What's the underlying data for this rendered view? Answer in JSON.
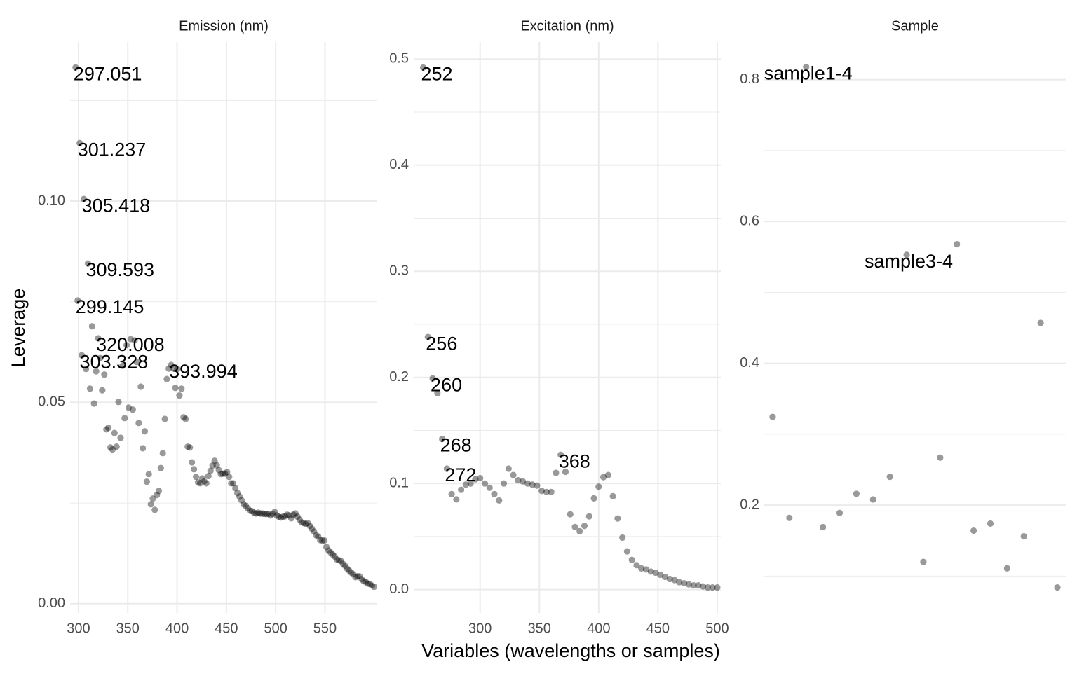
{
  "axis_titles": {
    "x": "Variables (wavelengths or samples)",
    "y": "Leverage"
  },
  "chart_data": [
    {
      "type": "scatter",
      "title": "Emission (nm)",
      "color": "#000000",
      "opacity": 0.4,
      "grid": true,
      "xlim": [
        291.5,
        603
      ],
      "xticks": [
        300,
        350,
        400,
        450,
        500,
        550
      ],
      "ylim": [
        -0.0023,
        0.1395
      ],
      "yticks": [
        {
          "value": 0,
          "label": "0.00"
        },
        {
          "value": 0.05,
          "label": "0.05"
        },
        {
          "value": 0.1,
          "label": "0.10"
        }
      ],
      "y_minor_ticks": [
        0.025,
        0.075,
        0.125
      ],
      "x": [
        307.5,
        311.7,
        313.8,
        315.8,
        317.9,
        322.1,
        324.1,
        326.2,
        328.3,
        330.3,
        332.4,
        334.5,
        336.5,
        338.6,
        340.6,
        342.7,
        344.7,
        346.8,
        348.8,
        350.9,
        352.9,
        355.0,
        357.0,
        359.1,
        361.1,
        363.2,
        365.2,
        367.2,
        369.3,
        371.3,
        373.4,
        375.4,
        377.4,
        379.5,
        381.5,
        383.5,
        385.5,
        387.6,
        389.6,
        391.6,
        396.1,
        398.2,
        400.3,
        402.4,
        404.5,
        406.6,
        408.7,
        410.8,
        412.9,
        415.0,
        417.1,
        419.2,
        421.3,
        423.4,
        425.5,
        427.6,
        429.7,
        431.8,
        433.9,
        436.0,
        438.1,
        440.2,
        442.3,
        444.4,
        446.5,
        448.6,
        450.7,
        452.8,
        454.9,
        457.0,
        459.1,
        461.2,
        463.3,
        465.4,
        467.5,
        469.6,
        471.7,
        473.8,
        475.9,
        478.0,
        480.1,
        482.2,
        484.3,
        486.4,
        488.5,
        490.6,
        492.7,
        494.8,
        496.9,
        499.0,
        501.1,
        503.2,
        505.3,
        507.4,
        509.5,
        511.6,
        513.7,
        515.8,
        517.9,
        520.0,
        522.1,
        524.2,
        526.3,
        528.4,
        530.5,
        532.6,
        534.7,
        536.8,
        538.9,
        541.0,
        543.1,
        545.2,
        547.3,
        549.4,
        551.5,
        553.6,
        555.7,
        557.8,
        559.9,
        562.0,
        564.1,
        566.2,
        568.3,
        570.4,
        572.5,
        574.6,
        576.7,
        578.8,
        580.9,
        583.0,
        585.1,
        587.2,
        589.3,
        591.4,
        593.5,
        595.6,
        597.7,
        599.8
      ],
      "values": [
        0.0583,
        0.0534,
        0.0689,
        0.0497,
        0.0577,
        0.061,
        0.053,
        0.0569,
        0.0433,
        0.0437,
        0.0388,
        0.0383,
        0.0424,
        0.039,
        0.0501,
        0.0412,
        0.0591,
        0.0461,
        0.0642,
        0.0487,
        0.0657,
        0.0482,
        0.0654,
        0.06,
        0.0449,
        0.0539,
        0.0386,
        0.0428,
        0.0303,
        0.0322,
        0.0247,
        0.0261,
        0.0233,
        0.027,
        0.028,
        0.0337,
        0.0374,
        0.0459,
        0.0558,
        0.0584,
        0.0586,
        0.0536,
        0.0583,
        0.0517,
        0.0534,
        0.0463,
        0.0459,
        0.039,
        0.0388,
        0.0351,
        0.0334,
        0.0315,
        0.0301,
        0.0299,
        0.0311,
        0.0304,
        0.0299,
        0.0317,
        0.033,
        0.0343,
        0.0355,
        0.0344,
        0.0332,
        0.0322,
        0.0323,
        0.0323,
        0.0327,
        0.0315,
        0.0299,
        0.0299,
        0.0287,
        0.0275,
        0.0266,
        0.0257,
        0.0247,
        0.0243,
        0.0237,
        0.0231,
        0.023,
        0.0226,
        0.0224,
        0.0226,
        0.0224,
        0.0224,
        0.0223,
        0.0223,
        0.0223,
        0.0219,
        0.0223,
        0.0228,
        0.0219,
        0.0216,
        0.0214,
        0.0216,
        0.0217,
        0.0221,
        0.0219,
        0.0212,
        0.0221,
        0.0224,
        0.0216,
        0.0209,
        0.0202,
        0.02,
        0.0198,
        0.02,
        0.0193,
        0.0186,
        0.0179,
        0.017,
        0.0167,
        0.0158,
        0.0157,
        0.0157,
        0.0141,
        0.0132,
        0.0127,
        0.0122,
        0.0117,
        0.011,
        0.0108,
        0.0106,
        0.0099,
        0.0094,
        0.0087,
        0.0082,
        0.0077,
        0.0073,
        0.0066,
        0.0068,
        0.0068,
        0.0061,
        0.0056,
        0.0054,
        0.005,
        0.0049,
        0.0045,
        0.0042
      ],
      "labeled_points": [
        {
          "x": 297.051,
          "y": 0.1332
        },
        {
          "x": 301.237,
          "y": 0.1144
        },
        {
          "x": 305.418,
          "y": 0.1005
        },
        {
          "x": 309.593,
          "y": 0.0845
        },
        {
          "x": 299.145,
          "y": 0.0753
        },
        {
          "x": 320.008,
          "y": 0.0659
        },
        {
          "x": 303.328,
          "y": 0.0617
        },
        {
          "x": 393.994,
          "y": 0.0593
        }
      ]
    },
    {
      "type": "scatter",
      "title": "Excitation (nm)",
      "color": "#000000",
      "opacity": 0.4,
      "grid": true,
      "xlim": [
        244,
        503
      ],
      "xticks": [
        300,
        350,
        400,
        450,
        500
      ],
      "ylim": [
        -0.022,
        0.516
      ],
      "yticks": [
        {
          "value": 0,
          "label": "0.0"
        },
        0.1,
        0.2,
        0.3,
        0.4,
        0.5
      ],
      "y_minor_ticks": [
        0.05,
        0.15,
        0.25,
        0.35,
        0.45
      ],
      "x": [
        264,
        276,
        280,
        284,
        288,
        292,
        296,
        300,
        304,
        308,
        312,
        316,
        320,
        324,
        328,
        332,
        336,
        340,
        344,
        348,
        352,
        356,
        360,
        364,
        372,
        376,
        380,
        384,
        388,
        392,
        396,
        400,
        404,
        408,
        412,
        416,
        420,
        424,
        428,
        432,
        436,
        440,
        444,
        448,
        452,
        456,
        460,
        464,
        468,
        472,
        476,
        480,
        484,
        488,
        492,
        496,
        500
      ],
      "values": [
        0.185,
        0.09,
        0.085,
        0.094,
        0.099,
        0.1,
        0.104,
        0.105,
        0.1,
        0.096,
        0.09,
        0.084,
        0.1,
        0.114,
        0.108,
        0.103,
        0.102,
        0.1,
        0.099,
        0.098,
        0.093,
        0.092,
        0.092,
        0.11,
        0.111,
        0.071,
        0.059,
        0.055,
        0.06,
        0.069,
        0.086,
        0.097,
        0.106,
        0.108,
        0.088,
        0.067,
        0.049,
        0.036,
        0.028,
        0.023,
        0.02,
        0.019,
        0.017,
        0.016,
        0.014,
        0.012,
        0.01,
        0.009,
        0.007,
        0.006,
        0.005,
        0.004,
        0.004,
        0.003,
        0.002,
        0.002,
        0.002
      ],
      "labeled_points": [
        {
          "x": 252,
          "y": 0.492
        },
        {
          "x": 256,
          "y": 0.238
        },
        {
          "x": 260,
          "y": 0.199
        },
        {
          "x": 268,
          "y": 0.142
        },
        {
          "x": 272,
          "y": 0.114
        },
        {
          "x": 368,
          "y": 0.127
        }
      ]
    },
    {
      "type": "category_scatter",
      "title": "Sample",
      "color": "#000000",
      "opacity": 0.4,
      "grid": true,
      "ylim": [
        0.048,
        0.853
      ],
      "yticks": [
        0.2,
        0.4,
        0.6,
        0.8
      ],
      "y_minor_ticks": [
        0.1,
        0.3,
        0.5,
        0.7
      ],
      "categories": [
        null,
        null,
        "sample1-4",
        null,
        null,
        null,
        null,
        null,
        "sample3-4",
        null,
        null,
        null,
        null,
        null,
        null,
        null,
        null,
        null
      ],
      "values": [
        0.3245,
        0.182,
        0.818,
        0.169,
        0.189,
        0.216,
        0.208,
        0.24,
        0.553,
        0.12,
        0.267,
        0.568,
        0.164,
        0.174,
        0.111,
        0.156,
        0.457,
        0.084
      ]
    }
  ]
}
